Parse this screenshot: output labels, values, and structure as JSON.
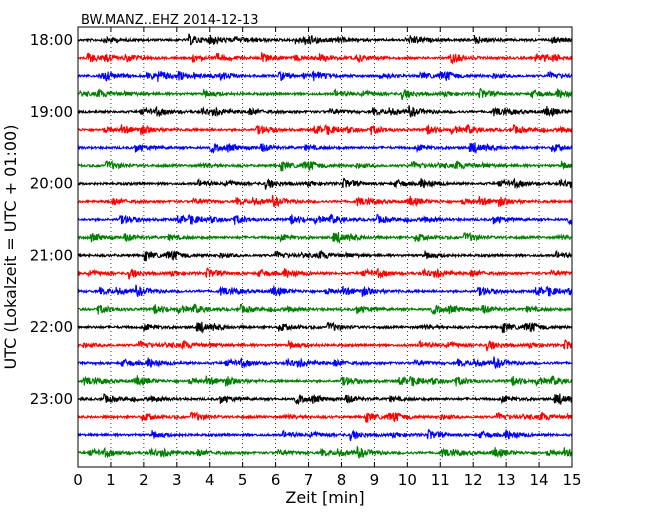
{
  "chart_data": {
    "type": "line",
    "title": "BW.MANZ..EHZ 2014-12-13",
    "xlabel": "Zeit  [min]",
    "ylabel": "UTC (Lokalzeit = UTC + 01:00)",
    "xlim": [
      0,
      15
    ],
    "x_ticks": [
      "0",
      "1",
      "2",
      "3",
      "4",
      "5",
      "6",
      "7",
      "8",
      "9",
      "10",
      "11",
      "12",
      "13",
      "14",
      "15"
    ],
    "y_tick_labels": [
      "18:00",
      "19:00",
      "20:00",
      "21:00",
      "22:00",
      "23:00"
    ],
    "y_tick_label_trace_index": [
      0,
      4,
      8,
      12,
      16,
      20
    ],
    "grid": "vertical dotted lines at each minute",
    "trace_colors": [
      "#000000",
      "#ff0000",
      "#0000ff",
      "#007f00"
    ],
    "series": [
      {
        "start": "18:00",
        "color": "#000000"
      },
      {
        "start": "18:15",
        "color": "#ff0000"
      },
      {
        "start": "18:30",
        "color": "#0000ff"
      },
      {
        "start": "18:45",
        "color": "#007f00"
      },
      {
        "start": "19:00",
        "color": "#000000"
      },
      {
        "start": "19:15",
        "color": "#ff0000"
      },
      {
        "start": "19:30",
        "color": "#0000ff"
      },
      {
        "start": "19:45",
        "color": "#007f00"
      },
      {
        "start": "20:00",
        "color": "#000000"
      },
      {
        "start": "20:15",
        "color": "#ff0000"
      },
      {
        "start": "20:30",
        "color": "#0000ff"
      },
      {
        "start": "20:45",
        "color": "#007f00"
      },
      {
        "start": "21:00",
        "color": "#000000"
      },
      {
        "start": "21:15",
        "color": "#ff0000"
      },
      {
        "start": "21:30",
        "color": "#0000ff"
      },
      {
        "start": "21:45",
        "color": "#007f00"
      },
      {
        "start": "22:00",
        "color": "#000000"
      },
      {
        "start": "22:15",
        "color": "#ff0000"
      },
      {
        "start": "22:30",
        "color": "#0000ff"
      },
      {
        "start": "22:45",
        "color": "#007f00"
      },
      {
        "start": "23:00",
        "color": "#000000"
      },
      {
        "start": "23:15",
        "color": "#ff0000"
      },
      {
        "start": "23:30",
        "color": "#0000ff"
      },
      {
        "start": "23:45",
        "color": "#007f00"
      }
    ]
  }
}
